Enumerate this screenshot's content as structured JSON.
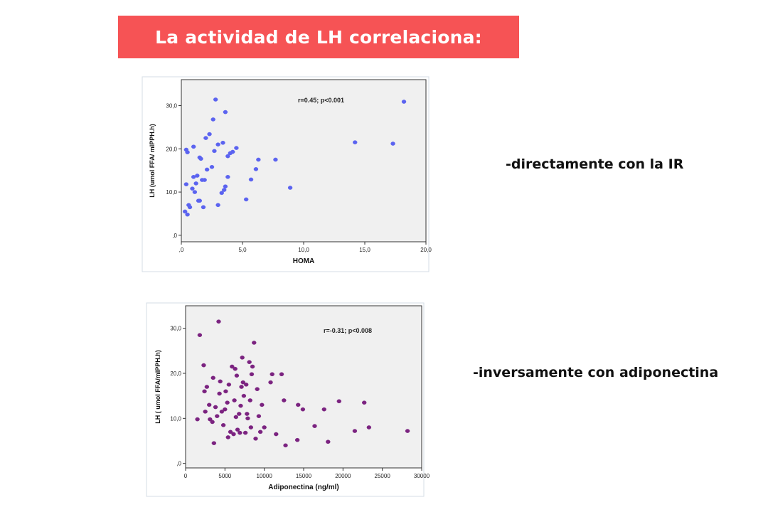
{
  "title": "La actividad de LH correlaciona:",
  "notes": {
    "direct": "-directamente con la IR",
    "inverse": "-inversamente con adiponectina"
  },
  "colors": {
    "banner": "#f65355",
    "series_homa": "#5b63f0",
    "series_adipo": "#7b2380"
  },
  "chart_data": [
    {
      "type": "scatter",
      "xlabel": "HOMA",
      "ylabel": "LH (umol FFA/ mlPPH.h)",
      "annotation": "r=0.45; p<0.001",
      "x_ticks": [
        ",0",
        "5,0",
        "10,0",
        "15,0",
        "20,0"
      ],
      "y_ticks": [
        ",0",
        "10,0",
        "20,0",
        "30,0"
      ],
      "xlim": [
        0,
        20
      ],
      "ylim": [
        -1.5,
        36
      ],
      "grid": false,
      "series": [
        {
          "x": [
            0.3,
            0.4,
            0.5,
            0.4,
            0.5,
            0.6,
            0.7,
            0.9,
            1.0,
            1.0,
            1.1,
            1.2,
            1.3,
            1.4,
            1.5,
            1.5,
            1.6,
            1.7,
            1.8,
            1.9,
            2.0,
            2.1,
            2.3,
            2.5,
            2.6,
            2.7,
            2.8,
            3.0,
            3.0,
            3.3,
            3.4,
            3.5,
            3.6,
            3.6,
            3.8,
            3.8,
            4.0,
            4.2,
            4.5,
            5.3,
            5.7,
            6.1,
            6.3,
            7.7,
            8.9,
            14.2,
            17.3,
            18.2
          ],
          "y": [
            5.5,
            19.8,
            19.2,
            11.8,
            4.8,
            7.0,
            6.5,
            10.8,
            13.5,
            20.5,
            10.0,
            12.0,
            13.8,
            8.0,
            18.0,
            8.0,
            17.7,
            12.8,
            6.5,
            12.8,
            22.5,
            15.2,
            23.4,
            15.8,
            26.8,
            19.5,
            31.4,
            7.0,
            21.0,
            9.8,
            21.4,
            10.5,
            28.5,
            11.3,
            18.3,
            13.5,
            19.0,
            19.3,
            20.2,
            8.3,
            12.9,
            15.3,
            17.5,
            17.5,
            11.0,
            21.5,
            21.2,
            30.9
          ]
        }
      ]
    },
    {
      "type": "scatter",
      "xlabel": "Adiponectina (ng/ml)",
      "ylabel": "LH ( umol FFA/mlPPH.h)",
      "annotation": "r=-0.31; p<0.008",
      "x_ticks": [
        "0",
        "5000",
        "10000",
        "15000",
        "20000",
        "25000",
        "30000"
      ],
      "y_ticks": [
        ",0",
        "10,0",
        "20,0",
        "30,0"
      ],
      "xlim": [
        0,
        30000
      ],
      "ylim": [
        -1,
        35
      ],
      "grid": false,
      "series": [
        {
          "x": [
            1500,
            1800,
            2300,
            2400,
            2500,
            2700,
            3000,
            3100,
            3400,
            3500,
            3600,
            3800,
            4000,
            4200,
            4300,
            4400,
            4600,
            4800,
            5000,
            5100,
            5300,
            5400,
            5500,
            5700,
            5900,
            6100,
            6200,
            6300,
            6400,
            6500,
            6600,
            6800,
            6900,
            7000,
            7100,
            7200,
            7300,
            7400,
            7600,
            7700,
            7800,
            7900,
            8100,
            8200,
            8300,
            8400,
            8500,
            8700,
            8900,
            9100,
            9300,
            9500,
            9700,
            10000,
            10800,
            11000,
            11500,
            12200,
            12500,
            12700,
            14200,
            14300,
            14900,
            16400,
            17600,
            18100,
            19500,
            21500,
            22700,
            23300,
            28200
          ],
          "y": [
            9.8,
            28.5,
            21.8,
            16.0,
            11.5,
            17.0,
            13.0,
            9.8,
            9.2,
            19.0,
            4.5,
            12.5,
            10.5,
            31.5,
            15.5,
            18.2,
            11.5,
            8.5,
            12.0,
            16.0,
            13.5,
            5.8,
            17.5,
            7.0,
            21.5,
            6.5,
            14.0,
            21.0,
            10.3,
            19.5,
            7.5,
            11.0,
            6.8,
            12.8,
            17.0,
            23.5,
            18.0,
            15.0,
            6.8,
            17.5,
            11.0,
            10.0,
            22.5,
            14.0,
            8.0,
            19.8,
            21.5,
            26.8,
            5.5,
            16.5,
            10.5,
            7.0,
            13.0,
            8.0,
            18.0,
            19.8,
            6.5,
            19.8,
            14.0,
            4.0,
            5.2,
            13.0,
            12.0,
            8.3,
            12.0,
            4.8,
            13.8,
            7.2,
            13.5,
            8.0,
            7.2
          ]
        }
      ]
    }
  ]
}
